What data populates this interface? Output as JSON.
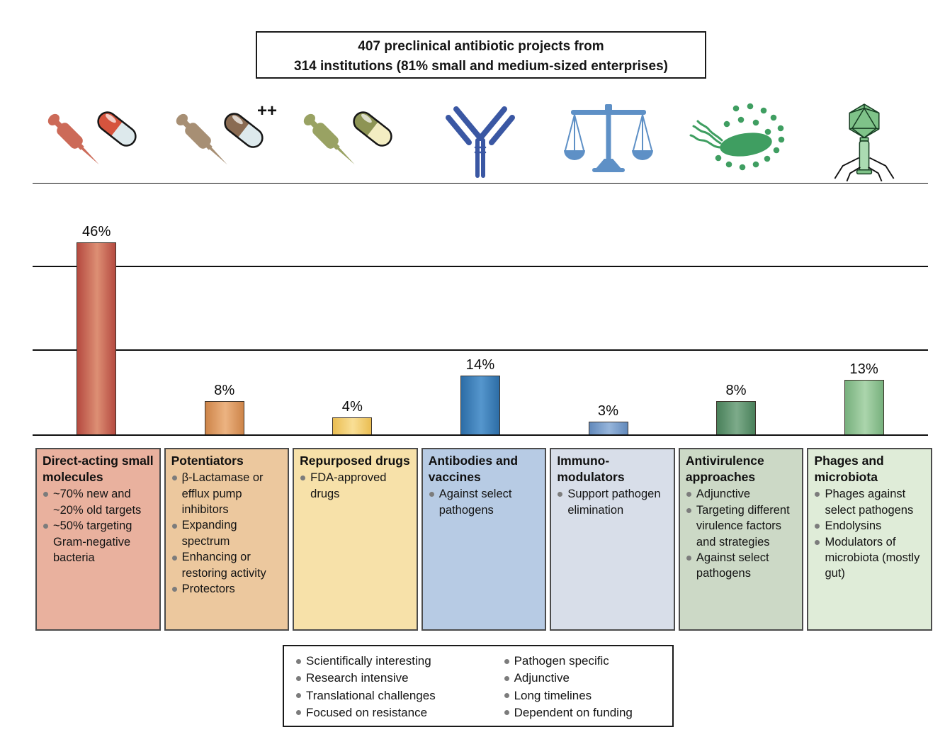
{
  "title": {
    "num1": "407",
    "rest1": " preclinical antibiotic projects from",
    "num2": "314",
    "rest2": " institutions (81% small and medium-sized enterprises)"
  },
  "icons": {
    "plus_plus": "++",
    "list": [
      "syringe-capsule-red-icon",
      "syringe-capsule-brown-plus-icon",
      "syringe-capsule-olive-icon",
      "antibody-icon",
      "balance-scale-icon",
      "bacteria-icon",
      "bacteriophage-icon"
    ]
  },
  "chart_data": {
    "type": "bar",
    "categories": [
      "Direct-acting small molecules",
      "Potentiators",
      "Repurposed drugs",
      "Antibodies and vaccines",
      "Immuno-modulators",
      "Antivirulence approaches",
      "Phages and microbiota"
    ],
    "values": [
      46,
      8,
      4,
      14,
      3,
      8,
      13
    ],
    "labels": [
      "46%",
      "8%",
      "4%",
      "14%",
      "3%",
      "8%",
      "13%"
    ],
    "unit": "percent of projects",
    "ylim": [
      0,
      60
    ],
    "gridlines_pct": [
      20,
      40,
      60
    ],
    "grid": "horizontal lines, no y-axis tick labels",
    "legend": "none",
    "bar_colors": [
      {
        "edge": "#b54a40",
        "mid": "#dd8f74"
      },
      {
        "edge": "#cd8449",
        "mid": "#ecb381"
      },
      {
        "edge": "#eabd52",
        "mid": "#f9df96"
      },
      {
        "edge": "#2d6da6",
        "mid": "#5596cd"
      },
      {
        "edge": "#6289bb",
        "mid": "#96b5db"
      },
      {
        "edge": "#49805a",
        "mid": "#7dab8a"
      },
      {
        "edge": "#77b07d",
        "mid": "#abd5ac"
      }
    ]
  },
  "boxes": [
    {
      "title": "Direct-acting small molecules",
      "bg": "#e9b19e",
      "bullets": [
        "~70% new and ~20% old targets",
        "~50% targeting Gram-negative bacteria"
      ]
    },
    {
      "title": "Potentiators",
      "bg": "#ecc89e",
      "bullets": [
        "β-Lactamase or efflux pump inhibitors",
        "Expanding spectrum",
        "Enhancing or restoring activity",
        "Protectors"
      ]
    },
    {
      "title": "Repurposed drugs",
      "bg": "#f7e1a9",
      "bullets": [
        "FDA-approved drugs"
      ]
    },
    {
      "title": "Antibodies and vaccines",
      "bg": "#b7cbe4",
      "bullets": [
        "Against select pathogens"
      ]
    },
    {
      "title": "Immuno-modulators",
      "bg": "#d8dee9",
      "bullets": [
        "Support pathogen elimination"
      ]
    },
    {
      "title": "Antivirulence approaches",
      "bg": "#ccd9c6",
      "bullets": [
        "Adjunctive",
        "Targeting different virulence factors and strategies",
        "Against select pathogens"
      ]
    },
    {
      "title": "Phages and microbiota",
      "bg": "#dfecd8",
      "bullets": [
        "Phages against select pathogens",
        "Endolysins",
        "Modulators of microbiota (mostly gut)"
      ]
    }
  ],
  "footer": {
    "left_bullets": [
      "Scientifically interesting",
      "Research intensive",
      "Translational challenges",
      "Focused on resistance"
    ],
    "right_bullets": [
      "Pathogen specific",
      "Adjunctive",
      "Long timelines",
      "Dependent on funding"
    ]
  }
}
